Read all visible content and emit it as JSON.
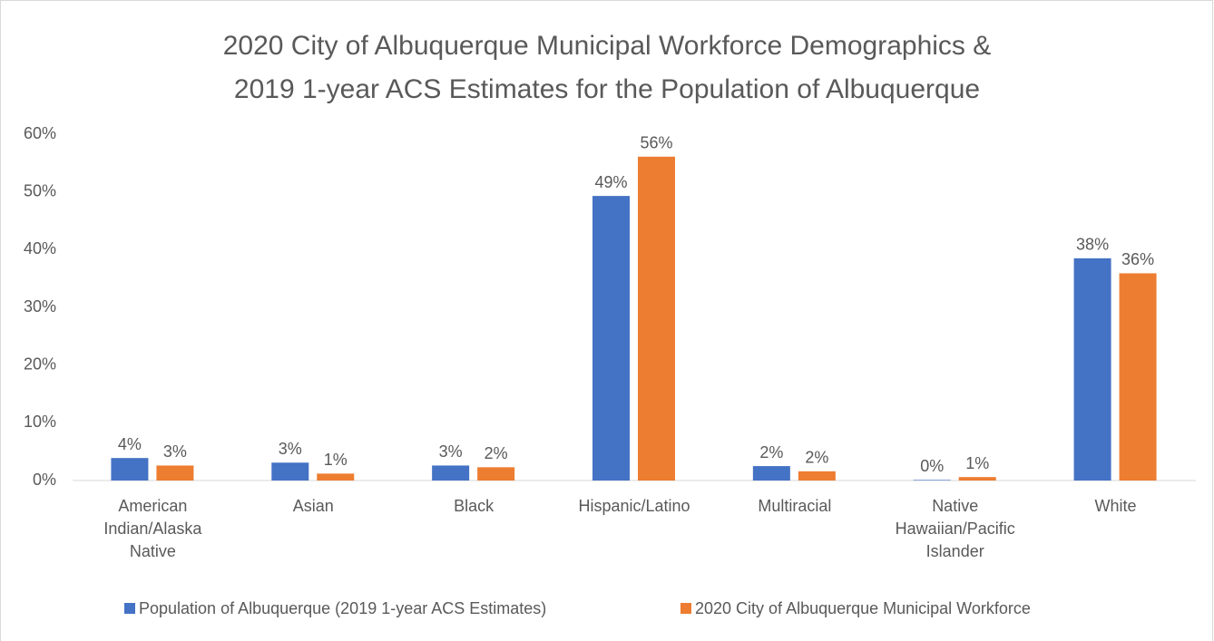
{
  "chart_data": {
    "type": "bar",
    "title": [
      "2020 City of Albuquerque Municipal Workforce Demographics &",
      "2019 1-year ACS Estimates for the Population of Albuquerque"
    ],
    "categories": [
      "American Indian/Alaska Native",
      "Asian",
      "Black",
      "Hispanic/Latino",
      "Multiracial",
      "Native Hawaiian/Pacific Islander",
      "White"
    ],
    "series": [
      {
        "name": "Population of Albuquerque (2019 1-year ACS Estimates)",
        "color": "#4472c4",
        "values": [
          3.9,
          3.1,
          2.6,
          49.3,
          2.5,
          0.1,
          38.5
        ],
        "value_labels": [
          "4%",
          "3%",
          "3%",
          "49%",
          "2%",
          "0%",
          "38%"
        ]
      },
      {
        "name": "2020 City of Albuquerque Municipal Workforce",
        "color": "#ed7d31",
        "values": [
          2.6,
          1.2,
          2.3,
          56.1,
          1.6,
          0.6,
          35.9
        ],
        "value_labels": [
          "3%",
          "1%",
          "2%",
          "56%",
          "2%",
          "1%",
          "36%"
        ]
      }
    ],
    "ylim": [
      0,
      60
    ],
    "yticks": [
      {
        "value": 0,
        "label": "0%"
      },
      {
        "value": 10,
        "label": "10%"
      },
      {
        "value": 20,
        "label": "20%"
      },
      {
        "value": 30,
        "label": "30%"
      },
      {
        "value": 40,
        "label": "40%"
      },
      {
        "value": 50,
        "label": "50%"
      },
      {
        "value": 60,
        "label": "60%"
      }
    ],
    "grid": false,
    "legend": "bottom"
  }
}
